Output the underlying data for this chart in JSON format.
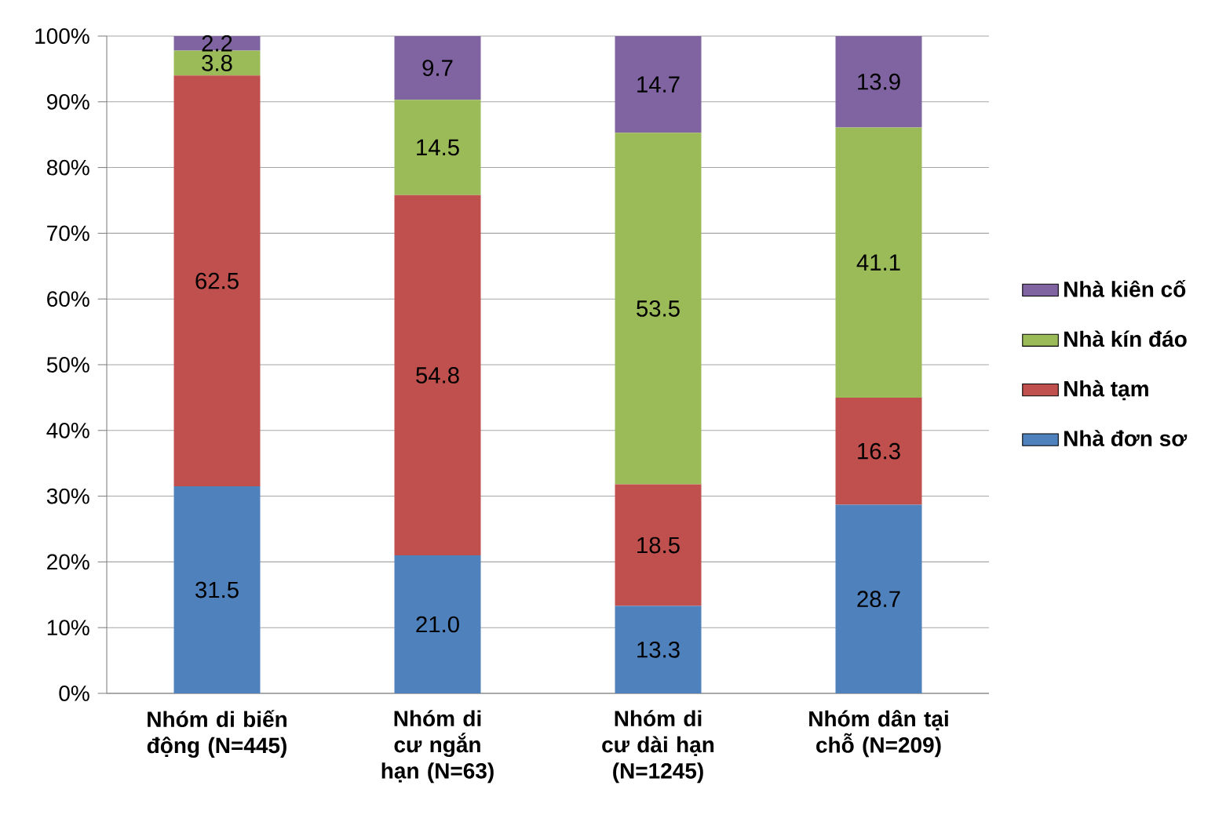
{
  "chart_data": {
    "type": "bar",
    "stacked": true,
    "categories": [
      "Nhóm di biến động (N=445)",
      "Nhóm di cư ngắn hạn (N=63)",
      "Nhóm di cư dài hạn (N=1245)",
      "Nhóm dân tại chỗ (N=209)"
    ],
    "series": [
      {
        "name": "Nhà đơn sơ",
        "color": "#4f81bd",
        "values": [
          31.5,
          21.0,
          13.3,
          28.7
        ],
        "value_labels": [
          "31.5",
          "21.0",
          "13.3",
          "28.7"
        ]
      },
      {
        "name": "Nhà tạm",
        "color": "#c0504d",
        "values": [
          62.5,
          54.8,
          18.5,
          16.3
        ],
        "value_labels": [
          "62.5",
          "54.8",
          "18.5",
          "16.3"
        ]
      },
      {
        "name": "Nhà kín đáo",
        "color": "#9bbb59",
        "values": [
          3.8,
          14.5,
          53.5,
          41.1
        ],
        "value_labels": [
          "3.8",
          "14.5",
          "53.5",
          "41.1"
        ]
      },
      {
        "name": "Nhà kiên cố",
        "color": "#8064a2",
        "values": [
          2.2,
          9.7,
          14.7,
          13.9
        ],
        "value_labels": [
          "2.2",
          "9.7",
          "14.7",
          "13.9"
        ]
      }
    ],
    "ylim": [
      0,
      100
    ],
    "yticks": [
      {
        "value": 0,
        "label": "0%"
      },
      {
        "value": 10,
        "label": "10%"
      },
      {
        "value": 20,
        "label": "20%"
      },
      {
        "value": 30,
        "label": "30%"
      },
      {
        "value": 40,
        "label": "40%"
      },
      {
        "value": 50,
        "label": "50%"
      },
      {
        "value": 60,
        "label": "60%"
      },
      {
        "value": 70,
        "label": "70%"
      },
      {
        "value": 80,
        "label": "80%"
      },
      {
        "value": 90,
        "label": "90%"
      },
      {
        "value": 100,
        "label": "100%"
      }
    ],
    "grid": "y",
    "legend": "right"
  }
}
